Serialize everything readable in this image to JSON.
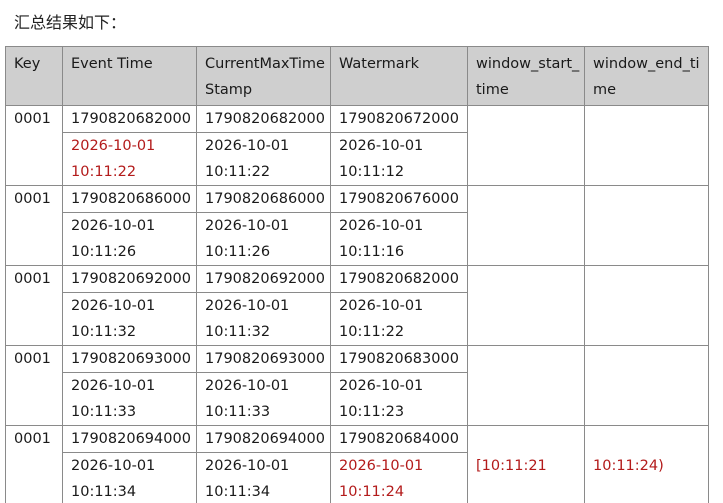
{
  "heading": "汇总结果如下：",
  "table": {
    "headers": [
      "Key",
      "Event Time",
      "CurrentMaxTimeStamp",
      "Watermark",
      "window_start_time",
      "window_end_time"
    ],
    "rows": [
      {
        "key": "0001",
        "event_time_ms": "1790820682000",
        "current_max_ms": "1790820682000",
        "watermark_ms": "1790820672000",
        "event_time_date": "2026-10-01",
        "event_time_clock": "10:11:22",
        "current_max_date": "2026-10-01",
        "current_max_clock": "10:11:22",
        "watermark_date": "2026-10-01",
        "watermark_clock": "10:11:12",
        "window_start": "",
        "window_end": ""
      },
      {
        "key": "0001",
        "event_time_ms": "1790820686000",
        "current_max_ms": "1790820686000",
        "watermark_ms": "1790820676000",
        "event_time_date": "2026-10-01",
        "event_time_clock": "10:11:26",
        "current_max_date": "2026-10-01",
        "current_max_clock": "10:11:26",
        "watermark_date": "2026-10-01",
        "watermark_clock": "10:11:16",
        "window_start": "",
        "window_end": ""
      },
      {
        "key": "0001",
        "event_time_ms": "1790820692000",
        "current_max_ms": "1790820692000",
        "watermark_ms": "1790820682000",
        "event_time_date": "2026-10-01",
        "event_time_clock": "10:11:32",
        "current_max_date": "2026-10-01",
        "current_max_clock": "10:11:32",
        "watermark_date": "2026-10-01",
        "watermark_clock": "10:11:22",
        "window_start": "",
        "window_end": ""
      },
      {
        "key": "0001",
        "event_time_ms": "1790820693000",
        "current_max_ms": "1790820693000",
        "watermark_ms": "1790820683000",
        "event_time_date": "2026-10-01",
        "event_time_clock": "10:11:33",
        "current_max_date": "2026-10-01",
        "current_max_clock": "10:11:33",
        "watermark_date": "2026-10-01",
        "watermark_clock": "10:11:23",
        "window_start": "",
        "window_end": ""
      },
      {
        "key": "0001",
        "event_time_ms": "1790820694000",
        "current_max_ms": "1790820694000",
        "watermark_ms": "1790820684000",
        "event_time_date": "2026-10-01",
        "event_time_clock": "10:11:34",
        "current_max_date": "2026-10-01",
        "current_max_clock": "10:11:34",
        "watermark_date": "2026-10-01",
        "watermark_clock": "10:11:24",
        "window_start": "[10:11:21",
        "window_end": "10:11:24)"
      }
    ]
  },
  "colors": {
    "header_bg": "#cfcfcf",
    "highlight_red": "#b31b1b",
    "border": "#8a8a8a"
  }
}
